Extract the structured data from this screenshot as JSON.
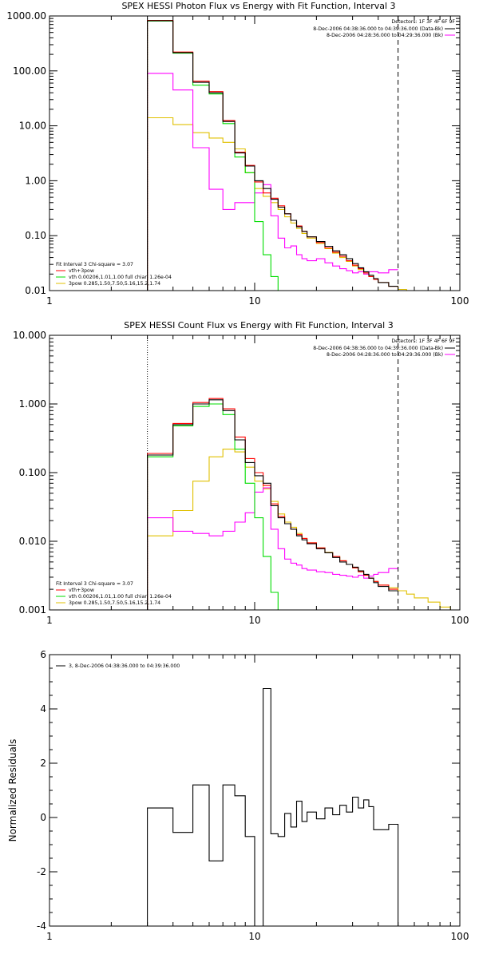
{
  "colors": {
    "data": "#000000",
    "total": "#ff0000",
    "vth": "#00dd00",
    "bpow": "#e0c000",
    "background": "#ff00ff",
    "axis": "#000000"
  },
  "chart_data": [
    {
      "type": "line",
      "step": true,
      "title": "SPEX HESSI Photon Flux vs Energy with Fit Function, Interval 3",
      "xlabel": "",
      "ylabel": "",
      "xscale": "log",
      "yscale": "log",
      "xlim": [
        1,
        100
      ],
      "ylim": [
        0.01,
        1000
      ],
      "xticks": [
        1,
        10,
        100
      ],
      "xticklabels": [
        "1",
        "10",
        "100"
      ],
      "yticks": [
        0.01,
        0.1,
        1,
        10,
        100,
        1000
      ],
      "yticklabels": [
        "0.01",
        "0.10",
        "1.00",
        "10.00",
        "100.00",
        "1000.00"
      ],
      "vlines": [
        {
          "x": 3,
          "style": "dotted"
        },
        {
          "x": 50,
          "style": "dashed"
        }
      ],
      "legend_right": [
        "Detectors: 1F 3F 4F 6F 9F",
        "8-Dec-2006 04:38:36.000 to 04:39:36.000 (Data-Bk)",
        "8-Dec-2006 04:28:36.000 to 04:29:36.000 (Bk)"
      ],
      "legend_left": [
        "Fit Interval  3    Chi-square = 3.07",
        "vth+3pow",
        "vth 0.00206,1.01,1.00  full chian 1.26e-04",
        "3pow 0.285,1.50,7.50,5.16,15.2,1.74"
      ],
      "edges": [
        3,
        4,
        5,
        6,
        7,
        8,
        9,
        10,
        11,
        12,
        13,
        14,
        15,
        16,
        17,
        18,
        20,
        22,
        24,
        26,
        28,
        30,
        32,
        34,
        36,
        38,
        40,
        45,
        50,
        55,
        60
      ],
      "series": [
        {
          "name": "Data-Bk",
          "color_key": "data",
          "values": [
            820,
            215,
            62,
            40,
            12,
            3.2,
            1.85,
            1.0,
            0.72,
            0.46,
            0.33,
            0.25,
            0.19,
            0.145,
            0.12,
            0.095,
            0.078,
            0.064,
            0.053,
            0.045,
            0.038,
            0.031,
            0.026,
            0.022,
            0.019,
            0.0165,
            0.014,
            0.012,
            null,
            null
          ]
        },
        {
          "name": "vth+3pow",
          "color_key": "total",
          "values": [
            830,
            220,
            65,
            42,
            12.5,
            3.3,
            1.9,
            0.95,
            0.6,
            0.48,
            0.35,
            0.25,
            0.19,
            0.15,
            0.12,
            0.095,
            0.075,
            0.06,
            0.05,
            0.042,
            0.035,
            0.029,
            0.025,
            0.021,
            0.018,
            0.016,
            0.014,
            0.012,
            null,
            null
          ]
        },
        {
          "name": "vth",
          "color_key": "vth",
          "values": [
            810,
            210,
            55,
            38,
            11,
            2.7,
            1.4,
            0.18,
            0.045,
            0.018,
            0.008,
            null,
            null,
            null,
            null,
            null,
            null,
            null,
            null,
            null,
            null,
            null,
            null,
            null,
            null,
            null,
            null,
            null,
            null,
            null
          ]
        },
        {
          "name": "3pow",
          "color_key": "bpow",
          "values": [
            14,
            10.5,
            7.5,
            6.0,
            5.0,
            3.8,
            1.4,
            0.72,
            0.52,
            0.4,
            0.3,
            0.22,
            0.17,
            0.135,
            0.11,
            0.09,
            0.072,
            0.058,
            0.048,
            0.04,
            0.034,
            0.028,
            0.024,
            0.02,
            0.018,
            0.016,
            0.014,
            0.012,
            0.0105,
            0.0095
          ]
        },
        {
          "name": "Bk",
          "color_key": "background",
          "values": [
            90,
            45,
            4.0,
            0.7,
            0.3,
            0.4,
            0.4,
            0.6,
            0.85,
            0.23,
            0.09,
            0.06,
            0.065,
            0.045,
            0.038,
            0.035,
            0.038,
            0.032,
            0.028,
            0.025,
            0.023,
            0.021,
            0.022,
            0.02,
            0.022,
            0.022,
            0.021,
            0.024,
            null,
            null
          ]
        }
      ]
    },
    {
      "type": "line",
      "step": true,
      "title": "SPEX HESSI Count Flux vs Energy with Fit Function, Interval 3",
      "xlabel": "",
      "ylabel": "",
      "xscale": "log",
      "yscale": "log",
      "xlim": [
        1,
        100
      ],
      "ylim": [
        0.001,
        10
      ],
      "xticks": [
        1,
        10,
        100
      ],
      "xticklabels": [
        "1",
        "10",
        "100"
      ],
      "yticks": [
        0.001,
        0.01,
        0.1,
        1,
        10
      ],
      "yticklabels": [
        "0.001",
        "0.010",
        "0.100",
        "1.000",
        "10.000"
      ],
      "vlines": [
        {
          "x": 3,
          "style": "dotted"
        },
        {
          "x": 50,
          "style": "dashed"
        }
      ],
      "legend_right": [
        "Detectors: 1F 3F 4F 6F 9F",
        "8-Dec-2006 04:38:36.000 to 04:39:36.000 (Data-Bk)",
        "8-Dec-2006 04:28:36.000 to 04:29:36.000 (Bk)"
      ],
      "legend_left": [
        "Fit Interval  3    Chi-square = 3.07",
        "vth+3pow",
        "vth 0.00206,1.01,1.00  full chian 1.26e-04",
        "3pow 0.285,1.50,7.50,5.16,15.2,1.74"
      ],
      "edges": [
        3,
        4,
        5,
        6,
        7,
        8,
        9,
        10,
        11,
        12,
        13,
        14,
        15,
        16,
        17,
        18,
        20,
        22,
        24,
        26,
        28,
        30,
        32,
        34,
        36,
        38,
        40,
        45,
        50,
        55,
        60,
        70,
        80,
        90,
        100
      ],
      "series": [
        {
          "name": "Data-Bk",
          "color_key": "data",
          "values": [
            0.18,
            0.5,
            1.0,
            1.15,
            0.8,
            0.3,
            0.14,
            0.09,
            0.07,
            0.033,
            0.022,
            0.018,
            0.015,
            0.012,
            0.0105,
            0.0092,
            0.0078,
            0.0068,
            0.0058,
            0.005,
            0.0046,
            0.0042,
            0.0037,
            0.0033,
            0.0029,
            0.0025,
            0.0022,
            0.0019,
            null,
            null,
            null,
            null,
            null,
            null
          ]
        },
        {
          "name": "vth+3pow",
          "color_key": "total",
          "values": [
            0.19,
            0.52,
            1.05,
            1.2,
            0.85,
            0.33,
            0.16,
            0.1,
            0.065,
            0.035,
            0.023,
            0.018,
            0.015,
            0.0125,
            0.011,
            0.0095,
            0.008,
            0.0068,
            0.006,
            0.0052,
            0.0046,
            0.0041,
            0.0036,
            0.0032,
            0.0029,
            0.0026,
            0.0023,
            0.002,
            null,
            null,
            null,
            null,
            null,
            null
          ]
        },
        {
          "name": "vth",
          "color_key": "vth",
          "values": [
            0.17,
            0.48,
            0.92,
            1.0,
            0.7,
            0.22,
            0.07,
            0.022,
            0.006,
            0.0018,
            0.0008,
            null,
            null,
            null,
            null,
            null,
            null,
            null,
            null,
            null,
            null,
            null,
            null,
            null,
            null,
            null,
            null,
            null,
            null,
            null,
            null,
            null,
            null,
            null
          ]
        },
        {
          "name": "3pow",
          "color_key": "bpow",
          "values": [
            0.012,
            0.028,
            0.075,
            0.17,
            0.22,
            0.2,
            0.12,
            0.075,
            0.058,
            0.038,
            0.025,
            0.019,
            0.016,
            0.013,
            0.011,
            0.0095,
            0.008,
            0.0069,
            0.006,
            0.0052,
            0.0046,
            0.0041,
            0.0036,
            0.0032,
            0.0029,
            0.0026,
            0.0023,
            0.0021,
            0.0019,
            0.0017,
            0.0015,
            0.0013,
            0.0011,
            0.001
          ]
        },
        {
          "name": "Bk",
          "color_key": "background",
          "values": [
            0.022,
            0.014,
            0.013,
            0.012,
            0.014,
            0.019,
            0.026,
            0.052,
            0.06,
            0.015,
            0.0078,
            0.0055,
            0.0048,
            0.0045,
            0.004,
            0.0038,
            0.0036,
            0.0035,
            0.0033,
            0.0032,
            0.0031,
            0.003,
            0.0032,
            0.0029,
            0.0031,
            0.0033,
            0.0035,
            0.004,
            null,
            null,
            null,
            null,
            null,
            null
          ]
        }
      ]
    },
    {
      "type": "line",
      "step": true,
      "title": "",
      "xlabel": "",
      "ylabel": "Normalized Residuals",
      "xscale": "log",
      "yscale": "linear",
      "xlim": [
        1,
        100
      ],
      "ylim": [
        -4,
        6
      ],
      "xticks": [
        1,
        10,
        100
      ],
      "xticklabels": [
        "1",
        "10",
        "100"
      ],
      "yticks": [
        -4,
        -2,
        0,
        2,
        4,
        6
      ],
      "yticklabels": [
        "-4",
        "-2",
        "0",
        "2",
        "4",
        "6"
      ],
      "legend_left": [
        "3,  8-Dec-2006 04:38:36.000 to 04:39:36.000"
      ],
      "edges": [
        3,
        4,
        5,
        6,
        7,
        8,
        9,
        10,
        11,
        12,
        13,
        14,
        15,
        16,
        17,
        18,
        20,
        22,
        24,
        26,
        28,
        30,
        32,
        34,
        36,
        38,
        40,
        45,
        50
      ],
      "series": [
        {
          "name": "3,  8-Dec-2006 04:38:36.000 to 04:39:36.000",
          "color_key": "data",
          "values": [
            0.35,
            -0.55,
            1.2,
            -1.6,
            1.2,
            0.8,
            -0.7,
            -4.0,
            4.75,
            -0.6,
            -0.7,
            0.15,
            -0.35,
            0.6,
            -0.15,
            0.2,
            -0.05,
            0.35,
            0.1,
            0.45,
            0.2,
            0.75,
            0.35,
            0.65,
            0.4,
            -0.45,
            -0.45,
            -0.25
          ]
        }
      ]
    }
  ]
}
